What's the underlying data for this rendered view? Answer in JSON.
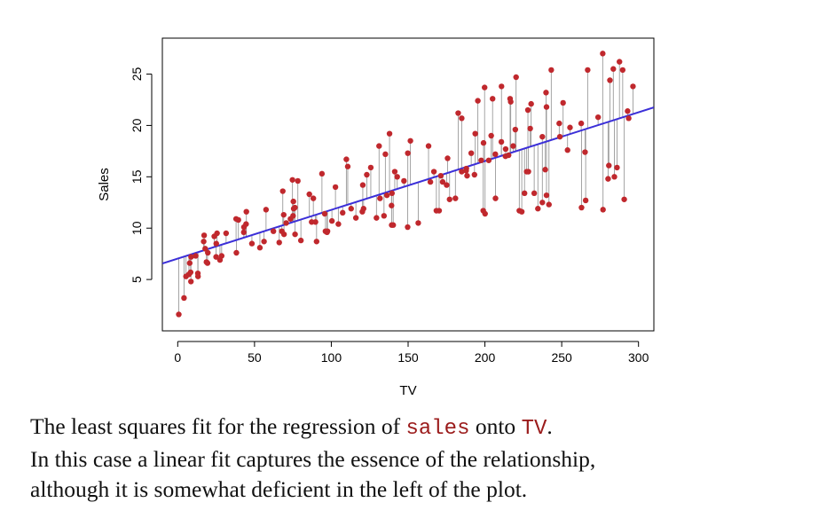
{
  "chart_data": {
    "type": "scatter",
    "xlabel": "TV",
    "ylabel": "Sales",
    "xlim": [
      -10,
      310
    ],
    "ylim": [
      0,
      28.5
    ],
    "x_ticks": [
      "0",
      "50",
      "100",
      "150",
      "200",
      "250",
      "300"
    ],
    "y_ticks": [
      "5",
      "10",
      "15",
      "20",
      "25"
    ],
    "fit_line": {
      "intercept": 7.03,
      "slope": 0.0475
    },
    "colors": {
      "points": "#c0282d",
      "fit": "#3b2fd8",
      "residuals": "#9a9a9a"
    },
    "points": [
      [
        0.7,
        1.6
      ],
      [
        4.1,
        3.2
      ],
      [
        5.4,
        5.3
      ],
      [
        7.3,
        5.5
      ],
      [
        7.8,
        6.6
      ],
      [
        8.4,
        5.7
      ],
      [
        8.6,
        4.8
      ],
      [
        8.7,
        7.2
      ],
      [
        11.7,
        7.3
      ],
      [
        13.1,
        5.6
      ],
      [
        13.2,
        5.3
      ],
      [
        16.9,
        8.7
      ],
      [
        17.2,
        9.3
      ],
      [
        17.9,
        8.0
      ],
      [
        18.7,
        6.7
      ],
      [
        19.4,
        6.6
      ],
      [
        19.6,
        7.6
      ],
      [
        23.8,
        9.2
      ],
      [
        25.0,
        7.2
      ],
      [
        25.1,
        8.5
      ],
      [
        25.6,
        9.5
      ],
      [
        27.5,
        6.9
      ],
      [
        28.6,
        7.3
      ],
      [
        31.5,
        9.5
      ],
      [
        38.0,
        10.9
      ],
      [
        38.2,
        7.6
      ],
      [
        39.5,
        10.8
      ],
      [
        43.0,
        9.6
      ],
      [
        43.1,
        10.1
      ],
      [
        44.5,
        10.4
      ],
      [
        44.7,
        11.6
      ],
      [
        48.3,
        8.5
      ],
      [
        53.5,
        8.1
      ],
      [
        56.2,
        8.7
      ],
      [
        57.5,
        11.8
      ],
      [
        62.3,
        9.7
      ],
      [
        66.1,
        8.6
      ],
      [
        67.8,
        9.7
      ],
      [
        68.4,
        13.6
      ],
      [
        69.0,
        11.3
      ],
      [
        69.2,
        9.4
      ],
      [
        70.6,
        10.5
      ],
      [
        73.4,
        10.9
      ],
      [
        74.7,
        14.7
      ],
      [
        75.1,
        11.2
      ],
      [
        75.3,
        12.6
      ],
      [
        75.5,
        11.9
      ],
      [
        76.3,
        12.0
      ],
      [
        76.4,
        9.4
      ],
      [
        78.2,
        14.6
      ],
      [
        80.2,
        8.8
      ],
      [
        85.7,
        13.3
      ],
      [
        87.2,
        10.6
      ],
      [
        88.3,
        12.9
      ],
      [
        89.7,
        10.6
      ],
      [
        90.4,
        8.7
      ],
      [
        93.9,
        15.3
      ],
      [
        95.7,
        11.4
      ],
      [
        96.2,
        9.7
      ],
      [
        97.2,
        9.6
      ],
      [
        97.5,
        9.7
      ],
      [
        100.4,
        10.7
      ],
      [
        102.7,
        14.0
      ],
      [
        104.6,
        10.4
      ],
      [
        107.4,
        11.5
      ],
      [
        109.8,
        16.7
      ],
      [
        110.7,
        16.0
      ],
      [
        112.9,
        11.9
      ],
      [
        116.0,
        11.0
      ],
      [
        120.2,
        11.6
      ],
      [
        120.5,
        14.2
      ],
      [
        121.0,
        11.9
      ],
      [
        123.1,
        15.2
      ],
      [
        125.7,
        15.9
      ],
      [
        129.4,
        11.0
      ],
      [
        131.1,
        18.0
      ],
      [
        131.7,
        12.9
      ],
      [
        134.3,
        11.2
      ],
      [
        135.2,
        17.2
      ],
      [
        136.2,
        13.2
      ],
      [
        137.9,
        19.2
      ],
      [
        139.2,
        12.2
      ],
      [
        139.3,
        10.3
      ],
      [
        139.5,
        13.4
      ],
      [
        140.3,
        10.3
      ],
      [
        141.3,
        15.5
      ],
      [
        142.9,
        15.0
      ],
      [
        147.3,
        14.6
      ],
      [
        149.7,
        10.1
      ],
      [
        149.8,
        17.3
      ],
      [
        151.5,
        18.5
      ],
      [
        156.6,
        10.5
      ],
      [
        163.3,
        18.0
      ],
      [
        164.5,
        14.5
      ],
      [
        166.8,
        15.5
      ],
      [
        168.4,
        11.7
      ],
      [
        170.2,
        11.7
      ],
      [
        171.3,
        15.1
      ],
      [
        172.5,
        14.5
      ],
      [
        175.1,
        14.2
      ],
      [
        175.7,
        16.8
      ],
      [
        177.0,
        12.8
      ],
      [
        180.8,
        12.9
      ],
      [
        182.6,
        21.2
      ],
      [
        184.9,
        20.7
      ],
      [
        184.9,
        15.5
      ],
      [
        187.8,
        15.6
      ],
      [
        187.9,
        15.8
      ],
      [
        188.4,
        15.1
      ],
      [
        191.1,
        17.3
      ],
      [
        193.2,
        15.2
      ],
      [
        193.7,
        19.2
      ],
      [
        195.4,
        22.4
      ],
      [
        197.6,
        16.6
      ],
      [
        198.9,
        11.7
      ],
      [
        199.1,
        18.3
      ],
      [
        199.8,
        23.7
      ],
      [
        200.1,
        11.4
      ],
      [
        202.5,
        16.6
      ],
      [
        204.1,
        19.0
      ],
      [
        205.0,
        22.6
      ],
      [
        206.9,
        12.9
      ],
      [
        206.8,
        17.2
      ],
      [
        210.7,
        18.4
      ],
      [
        210.8,
        23.8
      ],
      [
        213.4,
        17.0
      ],
      [
        213.5,
        17.7
      ],
      [
        215.4,
        17.1
      ],
      [
        216.4,
        22.6
      ],
      [
        216.8,
        22.3
      ],
      [
        218.4,
        18.0
      ],
      [
        219.8,
        19.6
      ],
      [
        220.3,
        24.7
      ],
      [
        222.4,
        11.7
      ],
      [
        224.0,
        11.6
      ],
      [
        225.8,
        13.4
      ],
      [
        227.2,
        15.5
      ],
      [
        228.0,
        21.5
      ],
      [
        228.3,
        15.5
      ],
      [
        229.5,
        19.7
      ],
      [
        230.1,
        22.1
      ],
      [
        232.1,
        13.4
      ],
      [
        234.5,
        11.9
      ],
      [
        237.4,
        12.5
      ],
      [
        237.4,
        18.9
      ],
      [
        239.3,
        15.7
      ],
      [
        239.8,
        23.2
      ],
      [
        240.1,
        13.2
      ],
      [
        240.1,
        21.8
      ],
      [
        241.7,
        12.3
      ],
      [
        243.2,
        25.4
      ],
      [
        248.4,
        20.2
      ],
      [
        248.8,
        18.9
      ],
      [
        250.9,
        22.2
      ],
      [
        253.8,
        17.6
      ],
      [
        255.4,
        19.8
      ],
      [
        262.7,
        20.2
      ],
      [
        262.9,
        12.0
      ],
      [
        265.2,
        17.4
      ],
      [
        265.6,
        12.7
      ],
      [
        266.9,
        25.4
      ],
      [
        273.7,
        20.8
      ],
      [
        276.7,
        27.0
      ],
      [
        276.9,
        11.8
      ],
      [
        280.2,
        14.8
      ],
      [
        280.7,
        16.1
      ],
      [
        281.4,
        24.4
      ],
      [
        283.6,
        25.5
      ],
      [
        284.3,
        15.0
      ],
      [
        286.0,
        15.9
      ],
      [
        287.6,
        26.2
      ],
      [
        289.7,
        25.4
      ],
      [
        290.7,
        12.8
      ],
      [
        292.9,
        21.4
      ],
      [
        293.6,
        20.7
      ],
      [
        296.4,
        23.8
      ]
    ]
  },
  "caption": {
    "line1_before": "The least squares fit for the regression of ",
    "var_y": "sales",
    "line1_mid": " onto ",
    "var_x": "TV",
    "line1_end": ".",
    "line2": "In this case a linear fit captures the essence of the relationship,",
    "line3": "although it is somewhat deficient in the left of the plot."
  }
}
